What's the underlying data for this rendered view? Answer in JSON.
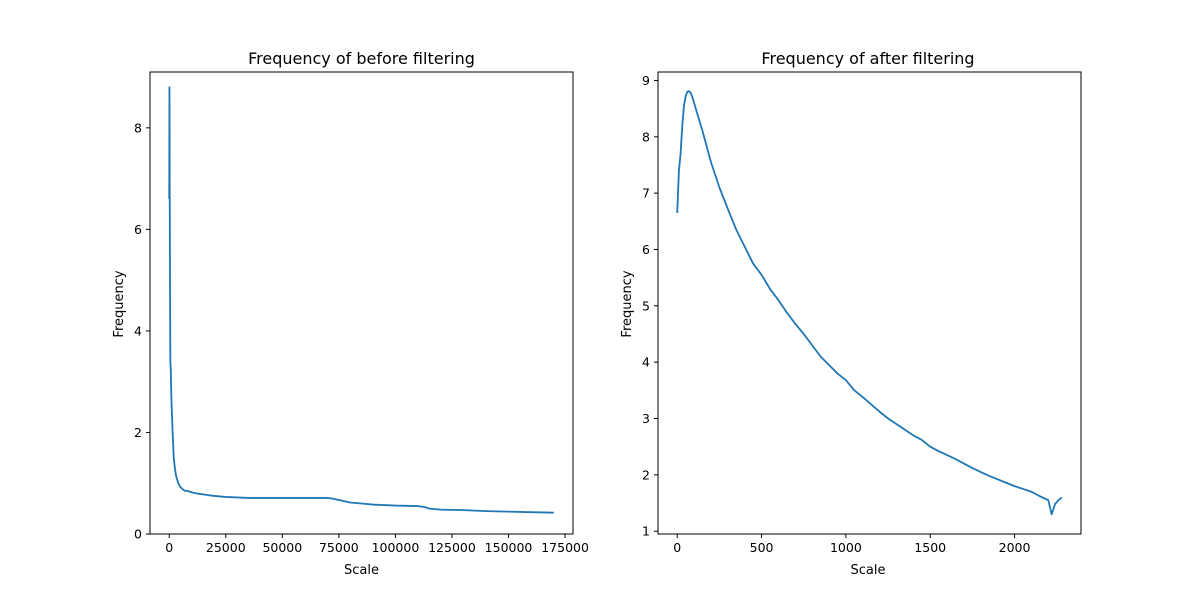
{
  "chart_data": [
    {
      "type": "line",
      "title": "Frequency of before filtering",
      "xlabel": "Scale",
      "ylabel": "Frequency",
      "xlim": [
        -8500,
        178500
      ],
      "ylim": [
        0,
        9.1
      ],
      "xticks": [
        0,
        25000,
        50000,
        75000,
        100000,
        125000,
        150000,
        175000
      ],
      "yticks": [
        0,
        2,
        4,
        6,
        8
      ],
      "grid": false,
      "color": "#1f77b4",
      "series": [
        {
          "x": [
            0,
            100,
            200,
            300,
            400,
            500,
            700,
            1000,
            1500,
            2000,
            2500,
            3000,
            4000,
            5000,
            6000,
            7000,
            8000,
            10000,
            12000,
            15000,
            18000,
            20000,
            25000,
            30000,
            35000,
            40000,
            50000,
            60000,
            70000,
            72000,
            74000,
            76000,
            78000,
            80000,
            85000,
            90000,
            100000,
            110000,
            113000,
            115000,
            120000,
            130000,
            140000,
            150000,
            160000,
            170000
          ],
          "y": [
            6.6,
            8.8,
            7.0,
            5.6,
            4.3,
            3.4,
            3.2,
            2.6,
            2.0,
            1.5,
            1.3,
            1.15,
            1.0,
            0.92,
            0.88,
            0.85,
            0.85,
            0.82,
            0.8,
            0.78,
            0.76,
            0.75,
            0.73,
            0.72,
            0.71,
            0.71,
            0.71,
            0.71,
            0.71,
            0.7,
            0.68,
            0.66,
            0.64,
            0.62,
            0.6,
            0.58,
            0.56,
            0.55,
            0.53,
            0.5,
            0.48,
            0.47,
            0.45,
            0.44,
            0.43,
            0.42
          ]
        }
      ]
    },
    {
      "type": "line",
      "title": "Frequency of after filtering",
      "xlabel": "Scale",
      "ylabel": "Frequency",
      "xlim": [
        -114,
        2394
      ],
      "ylim": [
        0.95,
        9.15
      ],
      "xticks": [
        0,
        500,
        1000,
        1500,
        2000
      ],
      "yticks": [
        1,
        2,
        3,
        4,
        5,
        6,
        7,
        8,
        9
      ],
      "grid": false,
      "color": "#1f77b4",
      "series": [
        {
          "x": [
            0,
            10,
            20,
            30,
            40,
            50,
            60,
            70,
            80,
            90,
            100,
            120,
            150,
            200,
            250,
            300,
            350,
            400,
            450,
            500,
            550,
            600,
            650,
            700,
            750,
            800,
            850,
            900,
            950,
            1000,
            1050,
            1100,
            1150,
            1200,
            1250,
            1300,
            1350,
            1400,
            1450,
            1500,
            1550,
            1600,
            1650,
            1700,
            1750,
            1800,
            1850,
            1900,
            1950,
            2000,
            2050,
            2100,
            2150,
            2200,
            2220,
            2240,
            2260,
            2280
          ],
          "y": [
            6.65,
            7.4,
            7.7,
            8.2,
            8.55,
            8.72,
            8.8,
            8.81,
            8.78,
            8.7,
            8.6,
            8.4,
            8.1,
            7.55,
            7.1,
            6.72,
            6.35,
            6.05,
            5.75,
            5.55,
            5.3,
            5.1,
            4.88,
            4.68,
            4.5,
            4.3,
            4.1,
            3.95,
            3.8,
            3.68,
            3.5,
            3.38,
            3.25,
            3.12,
            3.0,
            2.9,
            2.8,
            2.7,
            2.62,
            2.5,
            2.42,
            2.35,
            2.28,
            2.2,
            2.12,
            2.05,
            1.98,
            1.92,
            1.86,
            1.8,
            1.75,
            1.7,
            1.62,
            1.55,
            1.3,
            1.48,
            1.55,
            1.6
          ]
        }
      ]
    }
  ]
}
